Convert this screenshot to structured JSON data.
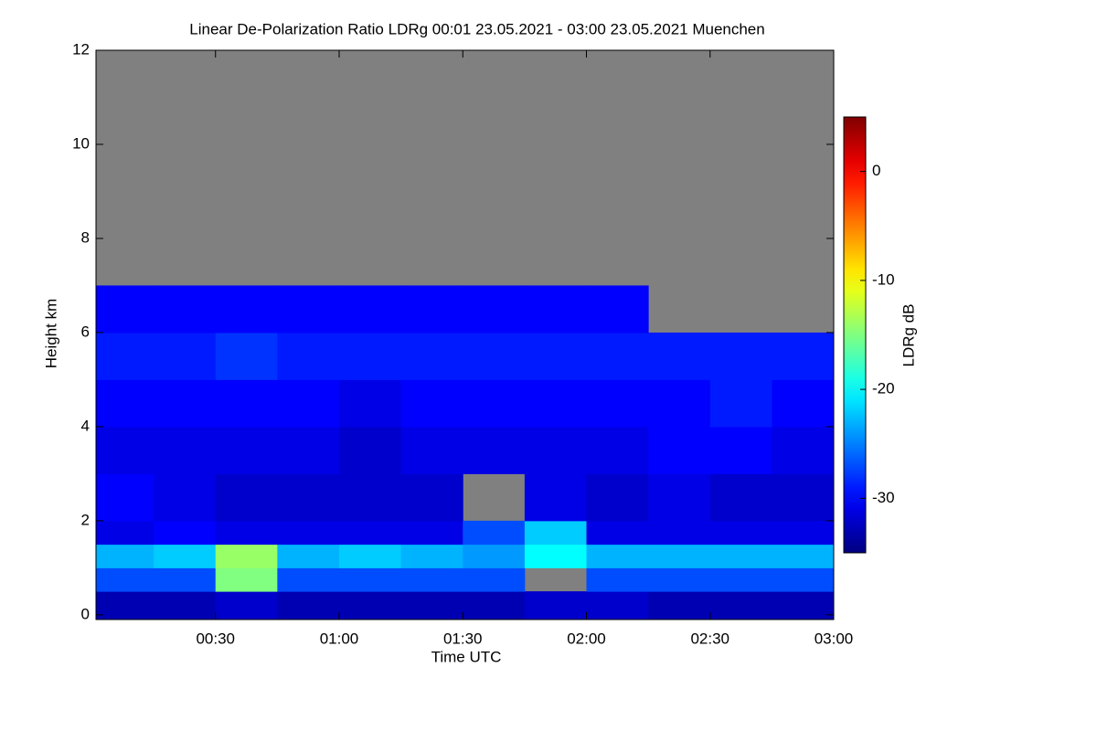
{
  "chart_data": {
    "type": "heatmap",
    "title": "Linear De-Polarization Ratio LDRg   00:01 23.05.2021 - 03:00 23.05.2021 Muenchen",
    "xlabel": "Time UTC",
    "ylabel": "Height km",
    "colorbar_label": "LDRg dB",
    "x_edges": [
      1,
      15,
      30,
      45,
      60,
      75,
      90,
      105,
      120,
      135,
      150,
      165,
      180
    ],
    "y_edges": [
      -0.1,
      0.5,
      1,
      1.5,
      2,
      3,
      4,
      5,
      6,
      7,
      12
    ],
    "z": [
      [
        -33,
        -33,
        -32,
        -33,
        -33,
        -33,
        -33,
        -32,
        -32,
        -33,
        -33,
        -33
      ],
      [
        -27,
        -27,
        -15,
        -27,
        -27,
        -27,
        -27,
        null,
        -27,
        -27,
        -27,
        -27
      ],
      [
        -23,
        -22,
        -14,
        -23,
        -22,
        -23,
        -24,
        -20,
        -23,
        -23,
        -23,
        -23
      ],
      [
        -31,
        -30,
        -31,
        -31,
        -31,
        -31,
        -27,
        -22,
        -31,
        -31,
        -31,
        -31
      ],
      [
        -30,
        -31,
        -32,
        -32,
        -32,
        -32,
        null,
        -31,
        -32,
        -31,
        -32,
        -32
      ],
      [
        -31,
        -31,
        -31,
        -31,
        -32,
        -31,
        -31,
        -31,
        -31,
        -30,
        -30,
        -31
      ],
      [
        -30,
        -30,
        -30,
        -30,
        -31,
        -30,
        -30,
        -30,
        -30,
        -30,
        -29,
        -30
      ],
      [
        -29,
        -29,
        -28,
        -29,
        -29,
        -29,
        -29,
        -29,
        -29,
        -29,
        -29,
        -29
      ],
      [
        -30,
        -30,
        -30,
        -30,
        -30,
        -30,
        -30,
        -30,
        -30,
        null,
        null,
        null
      ],
      [
        null,
        null,
        null,
        null,
        null,
        null,
        null,
        null,
        null,
        null,
        null,
        null
      ]
    ],
    "xlim": [
      1,
      180
    ],
    "xticks": [
      {
        "value": 30,
        "label": "00:30"
      },
      {
        "value": 60,
        "label": "01:00"
      },
      {
        "value": 90,
        "label": "01:30"
      },
      {
        "value": 120,
        "label": "02:00"
      },
      {
        "value": 150,
        "label": "02:30"
      },
      {
        "value": 180,
        "label": "03:00"
      }
    ],
    "ylim": [
      -0.1,
      12
    ],
    "yticks": [
      0,
      2,
      4,
      6,
      8,
      10,
      12
    ],
    "zlim": [
      -35,
      5
    ],
    "zticks": [
      -30,
      -20,
      -10,
      0
    ],
    "colormap": "jet",
    "missing_color": "#808080"
  }
}
